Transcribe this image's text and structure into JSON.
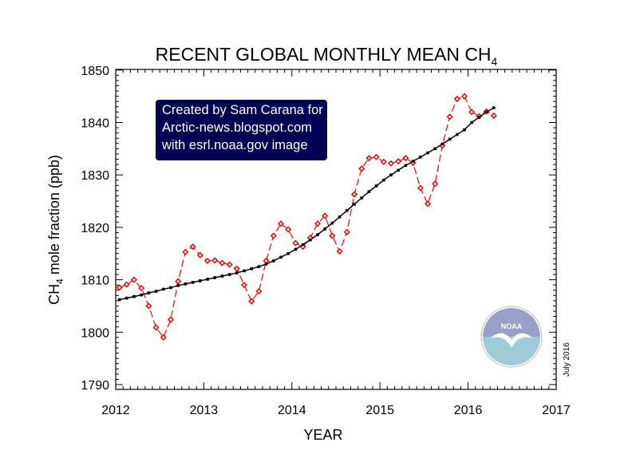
{
  "chart_data": {
    "type": "line",
    "title": "RECENT GLOBAL MONTHLY MEAN CH",
    "title_subscript": "4",
    "xlabel": "YEAR",
    "ylabel_prefix": "CH",
    "ylabel_subscript": "4",
    "ylabel_suffix": " mole fraction (ppb)",
    "xlim": [
      2012,
      2017
    ],
    "ylim": [
      1790,
      1851
    ],
    "xticks": [
      "2012",
      "2013",
      "2014",
      "2015",
      "2016",
      "2017"
    ],
    "yticks": [
      "1790",
      "1800",
      "1810",
      "1820",
      "1830",
      "1840",
      "1850"
    ],
    "grid": false,
    "x_start": "2012-01",
    "series": [
      {
        "style": "red dashed with open diamonds",
        "color": "#ff0000",
        "values": [
          1808.5,
          1809.1,
          1810.0,
          1808.4,
          1805.0,
          1800.9,
          1799.0,
          1802.4,
          1809.7,
          1815.3,
          1816.3,
          1814.7,
          1813.6,
          1813.7,
          1813.2,
          1812.9,
          1812.1,
          1809.0,
          1805.9,
          1807.8,
          1813.6,
          1818.4,
          1820.7,
          1819.6,
          1817.0,
          1816.3,
          1818.0,
          1820.7,
          1822.2,
          1818.4,
          1815.4,
          1819.1,
          1826.3,
          1831.2,
          1833.2,
          1833.4,
          1832.5,
          1832.2,
          1832.6,
          1833.2,
          1832.3,
          1827.5,
          1824.5,
          1828.3,
          1835.6,
          1841.1,
          1844.5,
          1845.0,
          1842.0,
          1841.2,
          1842.1,
          1841.3
        ]
      },
      {
        "style": "black solid with square markers",
        "color": "#000000",
        "values": [
          1806.2,
          1806.5,
          1806.8,
          1807.1,
          1807.5,
          1807.8,
          1808.2,
          1808.5,
          1808.9,
          1809.2,
          1809.5,
          1809.8,
          1810.1,
          1810.4,
          1810.7,
          1811.0,
          1811.3,
          1811.7,
          1812.1,
          1812.5,
          1813.0,
          1813.6,
          1814.3,
          1815.0,
          1815.8,
          1816.7,
          1817.6,
          1818.6,
          1819.7,
          1820.8,
          1822.0,
          1823.2,
          1824.4,
          1825.6,
          1826.8,
          1827.9,
          1829.0,
          1830.0,
          1830.9,
          1831.8,
          1832.6,
          1833.4,
          1834.2,
          1835.0,
          1835.9,
          1836.8,
          1837.7,
          1838.6,
          1840.0,
          1841.0,
          1842.0,
          1842.8
        ]
      }
    ],
    "annotation_lines": [
      "Created by Sam Carana for",
      "Arctic-news.blogspot.com",
      "with esrl.noaa.gov image"
    ],
    "annotation_bg": "#000055",
    "date_stamp": "July 2016",
    "logo": "NOAA"
  }
}
